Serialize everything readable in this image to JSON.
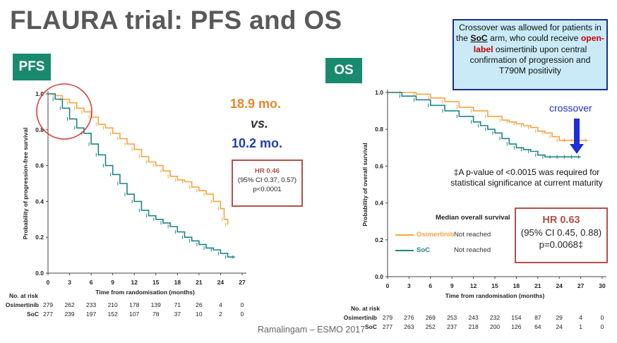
{
  "slide": {
    "title": "FLAURA trial: PFS and OS",
    "citation": "Ramalingam – ESMO 2017",
    "colors": {
      "osimertinib": "#f3a542",
      "soc": "#1f8486",
      "hr_border": "#b64f4a",
      "tag_bg": "#1a8a6e"
    }
  },
  "pfs": {
    "tag": "PFS",
    "median_osimertinib": "18.9 mo.",
    "vs": "vs.",
    "median_soc": "10.2 mo.",
    "hr_title": "HR 0.46",
    "hr_ci": "(95% CI 0.37, 0.57)",
    "hr_p": "p<0.0001"
  },
  "os": {
    "tag": "OS",
    "crossover_label": "crossover",
    "note": "‡A p-value of <0.0015 was required for statistical significance  at current maturity",
    "hr_title": "HR 0.63",
    "hr_ci": "(95% CI 0.45, 0.88)",
    "hr_p": "p=0.0068‡",
    "legend_title": "Median overall survival",
    "legend_osimertinib": "Osimertinib",
    "legend_osimertinib_status": "Not reached",
    "legend_soc": "SoC",
    "legend_soc_status": "Not reached"
  },
  "callout": {
    "line1_pre": "Crossover was allowed for patients in the ",
    "soc": "SoC",
    "line1_post": " arm, who could receive ",
    "open_label": "open-label",
    "rest": " osimertinib upon central confirmation of progression and T790M positivity"
  },
  "chart_data": [
    {
      "type": "line",
      "title": "",
      "xlabel": "Time from randomisation (months)",
      "ylabel": "Probability of progression-free survival",
      "xlim": [
        0,
        27
      ],
      "ylim": [
        0,
        1.0
      ],
      "x_ticks": [
        0,
        3,
        6,
        9,
        12,
        15,
        18,
        21,
        24,
        27
      ],
      "y_ticks": [
        "0.0",
        "0.2",
        "0.4",
        "0.6",
        "0.8",
        "1.0"
      ],
      "series": [
        {
          "name": "Osimertinib",
          "color": "#f3a542",
          "x": [
            0,
            1,
            2,
            3,
            4,
            5,
            6,
            7,
            8,
            9,
            10,
            11,
            12,
            13,
            14,
            15,
            16,
            17,
            18,
            19,
            20,
            21,
            22,
            23,
            24,
            24.5,
            25
          ],
          "y": [
            1.0,
            0.99,
            0.97,
            0.95,
            0.92,
            0.9,
            0.87,
            0.83,
            0.81,
            0.78,
            0.75,
            0.72,
            0.69,
            0.65,
            0.62,
            0.6,
            0.57,
            0.54,
            0.52,
            0.51,
            0.48,
            0.46,
            0.44,
            0.4,
            0.36,
            0.3,
            0.27
          ]
        },
        {
          "name": "SoC",
          "color": "#1f8486",
          "x": [
            0,
            1,
            2,
            3,
            4,
            5,
            6,
            7,
            8,
            9,
            10,
            11,
            12,
            13,
            14,
            15,
            16,
            17,
            18,
            19,
            20,
            21,
            22,
            23,
            24,
            25,
            26
          ],
          "y": [
            1.0,
            0.97,
            0.92,
            0.86,
            0.81,
            0.78,
            0.72,
            0.66,
            0.6,
            0.55,
            0.5,
            0.44,
            0.4,
            0.35,
            0.32,
            0.3,
            0.28,
            0.26,
            0.23,
            0.2,
            0.18,
            0.16,
            0.14,
            0.13,
            0.11,
            0.09,
            0.09
          ]
        }
      ],
      "at_risk_header": "No. at risk",
      "at_risk": [
        {
          "name": "Osimertinib",
          "values": [
            279,
            262,
            233,
            210,
            178,
            139,
            71,
            26,
            4,
            0
          ]
        },
        {
          "name": "SoC",
          "values": [
            277,
            239,
            197,
            152,
            107,
            78,
            37,
            10,
            2,
            0
          ]
        }
      ]
    },
    {
      "type": "line",
      "title": "",
      "xlabel": "Time from randomisation (months)",
      "ylabel": "Probability of overall survival",
      "xlim": [
        0,
        30
      ],
      "ylim": [
        0,
        1.0
      ],
      "x_ticks": [
        0,
        3,
        6,
        9,
        12,
        15,
        18,
        21,
        24,
        27,
        30
      ],
      "y_ticks": [
        "0.0",
        "0.2",
        "0.4",
        "0.6",
        "0.8",
        "1.0"
      ],
      "series": [
        {
          "name": "Osimertinib",
          "color": "#f3a542",
          "x": [
            0,
            2,
            4,
            6,
            8,
            10,
            12,
            14,
            16,
            17,
            18,
            19,
            20,
            21,
            22,
            23,
            24,
            25,
            26,
            27,
            28
          ],
          "y": [
            1.0,
            1.0,
            0.99,
            0.97,
            0.95,
            0.92,
            0.9,
            0.87,
            0.85,
            0.84,
            0.83,
            0.82,
            0.81,
            0.79,
            0.78,
            0.76,
            0.74,
            0.74,
            0.74,
            0.74,
            0.74
          ]
        },
        {
          "name": "SoC",
          "color": "#1f8486",
          "x": [
            0,
            2,
            4,
            6,
            8,
            10,
            12,
            13,
            14,
            15,
            16,
            17,
            18,
            19,
            20,
            21,
            22,
            23,
            24,
            25,
            26,
            27
          ],
          "y": [
            1.0,
            0.98,
            0.96,
            0.93,
            0.9,
            0.87,
            0.84,
            0.82,
            0.8,
            0.78,
            0.75,
            0.72,
            0.7,
            0.69,
            0.68,
            0.66,
            0.65,
            0.65,
            0.65,
            0.65,
            0.65,
            0.65
          ]
        }
      ],
      "at_risk_header": "No. at risk",
      "at_risk": [
        {
          "name": "Osimertinib",
          "values": [
            279,
            276,
            269,
            253,
            243,
            232,
            154,
            87,
            29,
            4,
            0
          ]
        },
        {
          "name": "SoC",
          "values": [
            277,
            263,
            252,
            237,
            218,
            200,
            126,
            64,
            24,
            1,
            0
          ]
        }
      ]
    }
  ]
}
